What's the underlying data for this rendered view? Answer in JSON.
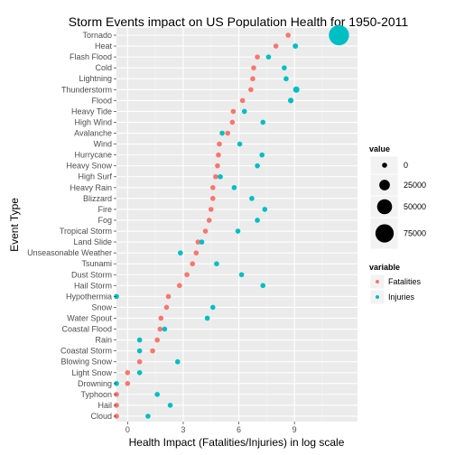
{
  "chart_data": {
    "type": "scatter",
    "title": "Storm Events impact on US Population Health for 1950-2011",
    "xlabel": "Health Impact (Fatalities/Injuries) in log scale",
    "ylabel": "Event Type",
    "xlim": [
      -0.6,
      12.4
    ],
    "xticks": [
      0,
      3,
      6,
      9
    ],
    "grid": true,
    "categories": [
      "Tornado",
      "Heat",
      "Flash Flood",
      "Cold",
      "Lightning",
      "Thunderstorm",
      "Flood",
      "Heavy Tide",
      "High Wind",
      "Avalanche",
      "Wind",
      "Hurrycane",
      "Heavy Snow",
      "High Surf",
      "Heavy Rain",
      "Blizzard",
      "Fire",
      "Fog",
      "Tropical Storm",
      "Land Slide",
      "Unseasonable Weather",
      "Tsunami",
      "Dust Storm",
      "Hail Storm",
      "Hypothermia",
      "Snow",
      "Water Spout",
      "Coastal Flood",
      "Rain",
      "Coastal Storm",
      "Blowing Snow",
      "Light Snow",
      "Drowning",
      "Typhoon",
      "Hail",
      "Cloud"
    ],
    "series": [
      {
        "name": "Fatalities",
        "color": "#F8766D",
        "values": [
          8.66,
          8.0,
          7.0,
          6.8,
          6.75,
          6.65,
          6.2,
          5.7,
          5.65,
          5.4,
          4.95,
          4.9,
          4.85,
          4.75,
          4.6,
          4.6,
          4.5,
          4.4,
          4.2,
          3.8,
          3.7,
          3.5,
          3.2,
          2.8,
          2.2,
          2.1,
          1.8,
          1.75,
          1.6,
          1.35,
          0.65,
          0.0,
          0.0,
          -0.6,
          -0.6,
          -0.6
        ]
      },
      {
        "name": "Injuries",
        "color": "#00BFC4",
        "values": [
          11.4,
          9.05,
          7.6,
          8.45,
          8.55,
          9.1,
          8.8,
          6.3,
          7.3,
          5.1,
          6.05,
          7.25,
          7.0,
          5.0,
          5.75,
          6.7,
          7.4,
          7.0,
          5.95,
          4.0,
          2.85,
          4.8,
          6.15,
          7.3,
          -0.6,
          4.6,
          4.3,
          2.0,
          0.65,
          0.65,
          2.7,
          0.65,
          -0.6,
          1.6,
          2.3,
          1.1
        ]
      }
    ],
    "sizes": {
      "Fatalities": [
        5633,
        937,
        978,
        160,
        817,
        755,
        470,
        233,
        248,
        224,
        111,
        135,
        127,
        101,
        98,
        101,
        90,
        80,
        66,
        44,
        29,
        33,
        24,
        15,
        1,
        1,
        3,
        3,
        5,
        4,
        1,
        1,
        1,
        1,
        1,
        1
      ],
      "Injuries": [
        91346,
        6525,
        1777,
        4000,
        5230,
        9000,
        6789,
        528,
        1137,
        170,
        402,
        1321,
        1021,
        154,
        280,
        805,
        1608,
        1076,
        383,
        55,
        17,
        129,
        440,
        1361,
        1,
        100,
        72,
        7,
        3,
        2,
        13,
        2,
        1,
        5,
        10,
        3
      ]
    },
    "legend_size": {
      "title": "value",
      "labels": [
        "0",
        "25000",
        "50000",
        "75000"
      ],
      "values": [
        0,
        25000,
        50000,
        75000
      ]
    },
    "legend_color": {
      "title": "variable",
      "labels": [
        "Fatalities",
        "Injuries"
      ],
      "colors": [
        "#F8766D",
        "#00BFC4"
      ]
    },
    "legend_position": "right"
  }
}
